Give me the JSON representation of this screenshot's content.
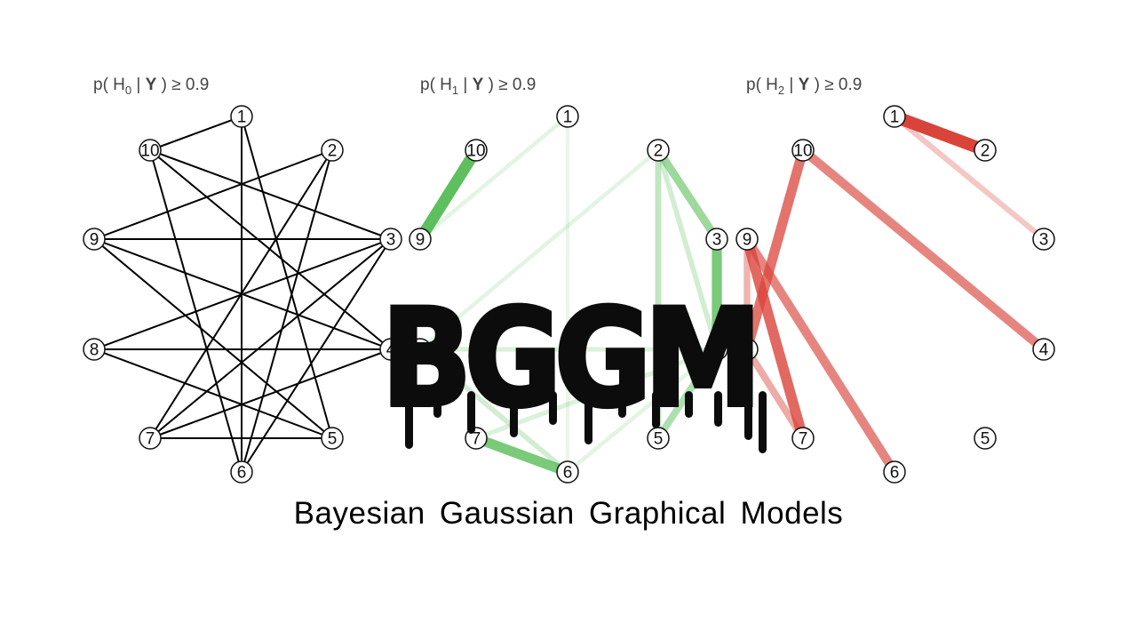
{
  "panels": [
    {
      "id": "H0",
      "title_prefix": "p( H",
      "title_sub": "0",
      "title_mid": " | ",
      "title_bold": "Y",
      "title_suffix": " ) ≥ 0.9",
      "edge_color": "#000000",
      "edges": [
        {
          "from": 1,
          "to": 10,
          "strength": 1
        },
        {
          "from": 1,
          "to": 5,
          "strength": 1
        },
        {
          "from": 1,
          "to": 6,
          "strength": 1
        },
        {
          "from": 10,
          "to": 3,
          "strength": 1
        },
        {
          "from": 10,
          "to": 4,
          "strength": 1
        },
        {
          "from": 10,
          "to": 6,
          "strength": 1
        },
        {
          "from": 2,
          "to": 9,
          "strength": 1
        },
        {
          "from": 2,
          "to": 7,
          "strength": 1
        },
        {
          "from": 2,
          "to": 6,
          "strength": 1
        },
        {
          "from": 9,
          "to": 3,
          "strength": 1
        },
        {
          "from": 9,
          "to": 4,
          "strength": 1
        },
        {
          "from": 9,
          "to": 5,
          "strength": 1
        },
        {
          "from": 8,
          "to": 3,
          "strength": 1
        },
        {
          "from": 8,
          "to": 4,
          "strength": 1
        },
        {
          "from": 8,
          "to": 5,
          "strength": 1
        },
        {
          "from": 3,
          "to": 7,
          "strength": 1
        },
        {
          "from": 3,
          "to": 6,
          "strength": 1
        },
        {
          "from": 7,
          "to": 5,
          "strength": 1
        },
        {
          "from": 4,
          "to": 7,
          "strength": 1
        }
      ]
    },
    {
      "id": "H1",
      "title_prefix": "p( H",
      "title_sub": "1",
      "title_mid": " | ",
      "title_bold": "Y",
      "title_suffix": " ) ≥ 0.9",
      "edge_color": "#4cb84c",
      "edges": [
        {
          "from": 10,
          "to": 9,
          "strength": 0.9
        },
        {
          "from": 1,
          "to": 9,
          "strength": 0.15
        },
        {
          "from": 1,
          "to": 6,
          "strength": 0.1
        },
        {
          "from": 2,
          "to": 8,
          "strength": 0.15
        },
        {
          "from": 2,
          "to": 3,
          "strength": 0.55
        },
        {
          "from": 2,
          "to": 5,
          "strength": 0.35
        },
        {
          "from": 2,
          "to": 4,
          "strength": 0.25
        },
        {
          "from": 3,
          "to": 4,
          "strength": 0.75
        },
        {
          "from": 8,
          "to": 6,
          "strength": 0.25
        },
        {
          "from": 7,
          "to": 6,
          "strength": 0.75
        },
        {
          "from": 4,
          "to": 8,
          "strength": 0.2
        },
        {
          "from": 5,
          "to": 4,
          "strength": 0.45
        },
        {
          "from": 7,
          "to": 4,
          "strength": 0.2
        },
        {
          "from": 4,
          "to": 6,
          "strength": 0.15
        }
      ]
    },
    {
      "id": "H2",
      "title_prefix": "p( H",
      "title_sub": "2",
      "title_mid": " | ",
      "title_bold": "Y",
      "title_suffix": " ) ≥ 0.9",
      "edge_color": "#d9443a",
      "edges": [
        {
          "from": 1,
          "to": 2,
          "strength": 1
        },
        {
          "from": 1,
          "to": 3,
          "strength": 0.3
        },
        {
          "from": 10,
          "to": 8,
          "strength": 0.75
        },
        {
          "from": 10,
          "to": 4,
          "strength": 0.65
        },
        {
          "from": 9,
          "to": 7,
          "strength": 0.8
        },
        {
          "from": 9,
          "to": 6,
          "strength": 0.65
        },
        {
          "from": 8,
          "to": 9,
          "strength": 0.4
        },
        {
          "from": 8,
          "to": 7,
          "strength": 0.45
        }
      ]
    }
  ],
  "nodes": [
    "1",
    "2",
    "3",
    "4",
    "5",
    "6",
    "7",
    "8",
    "9",
    "10"
  ],
  "logo": "BGGM",
  "subtitle": "Bayesian Gaussian Graphical Models"
}
